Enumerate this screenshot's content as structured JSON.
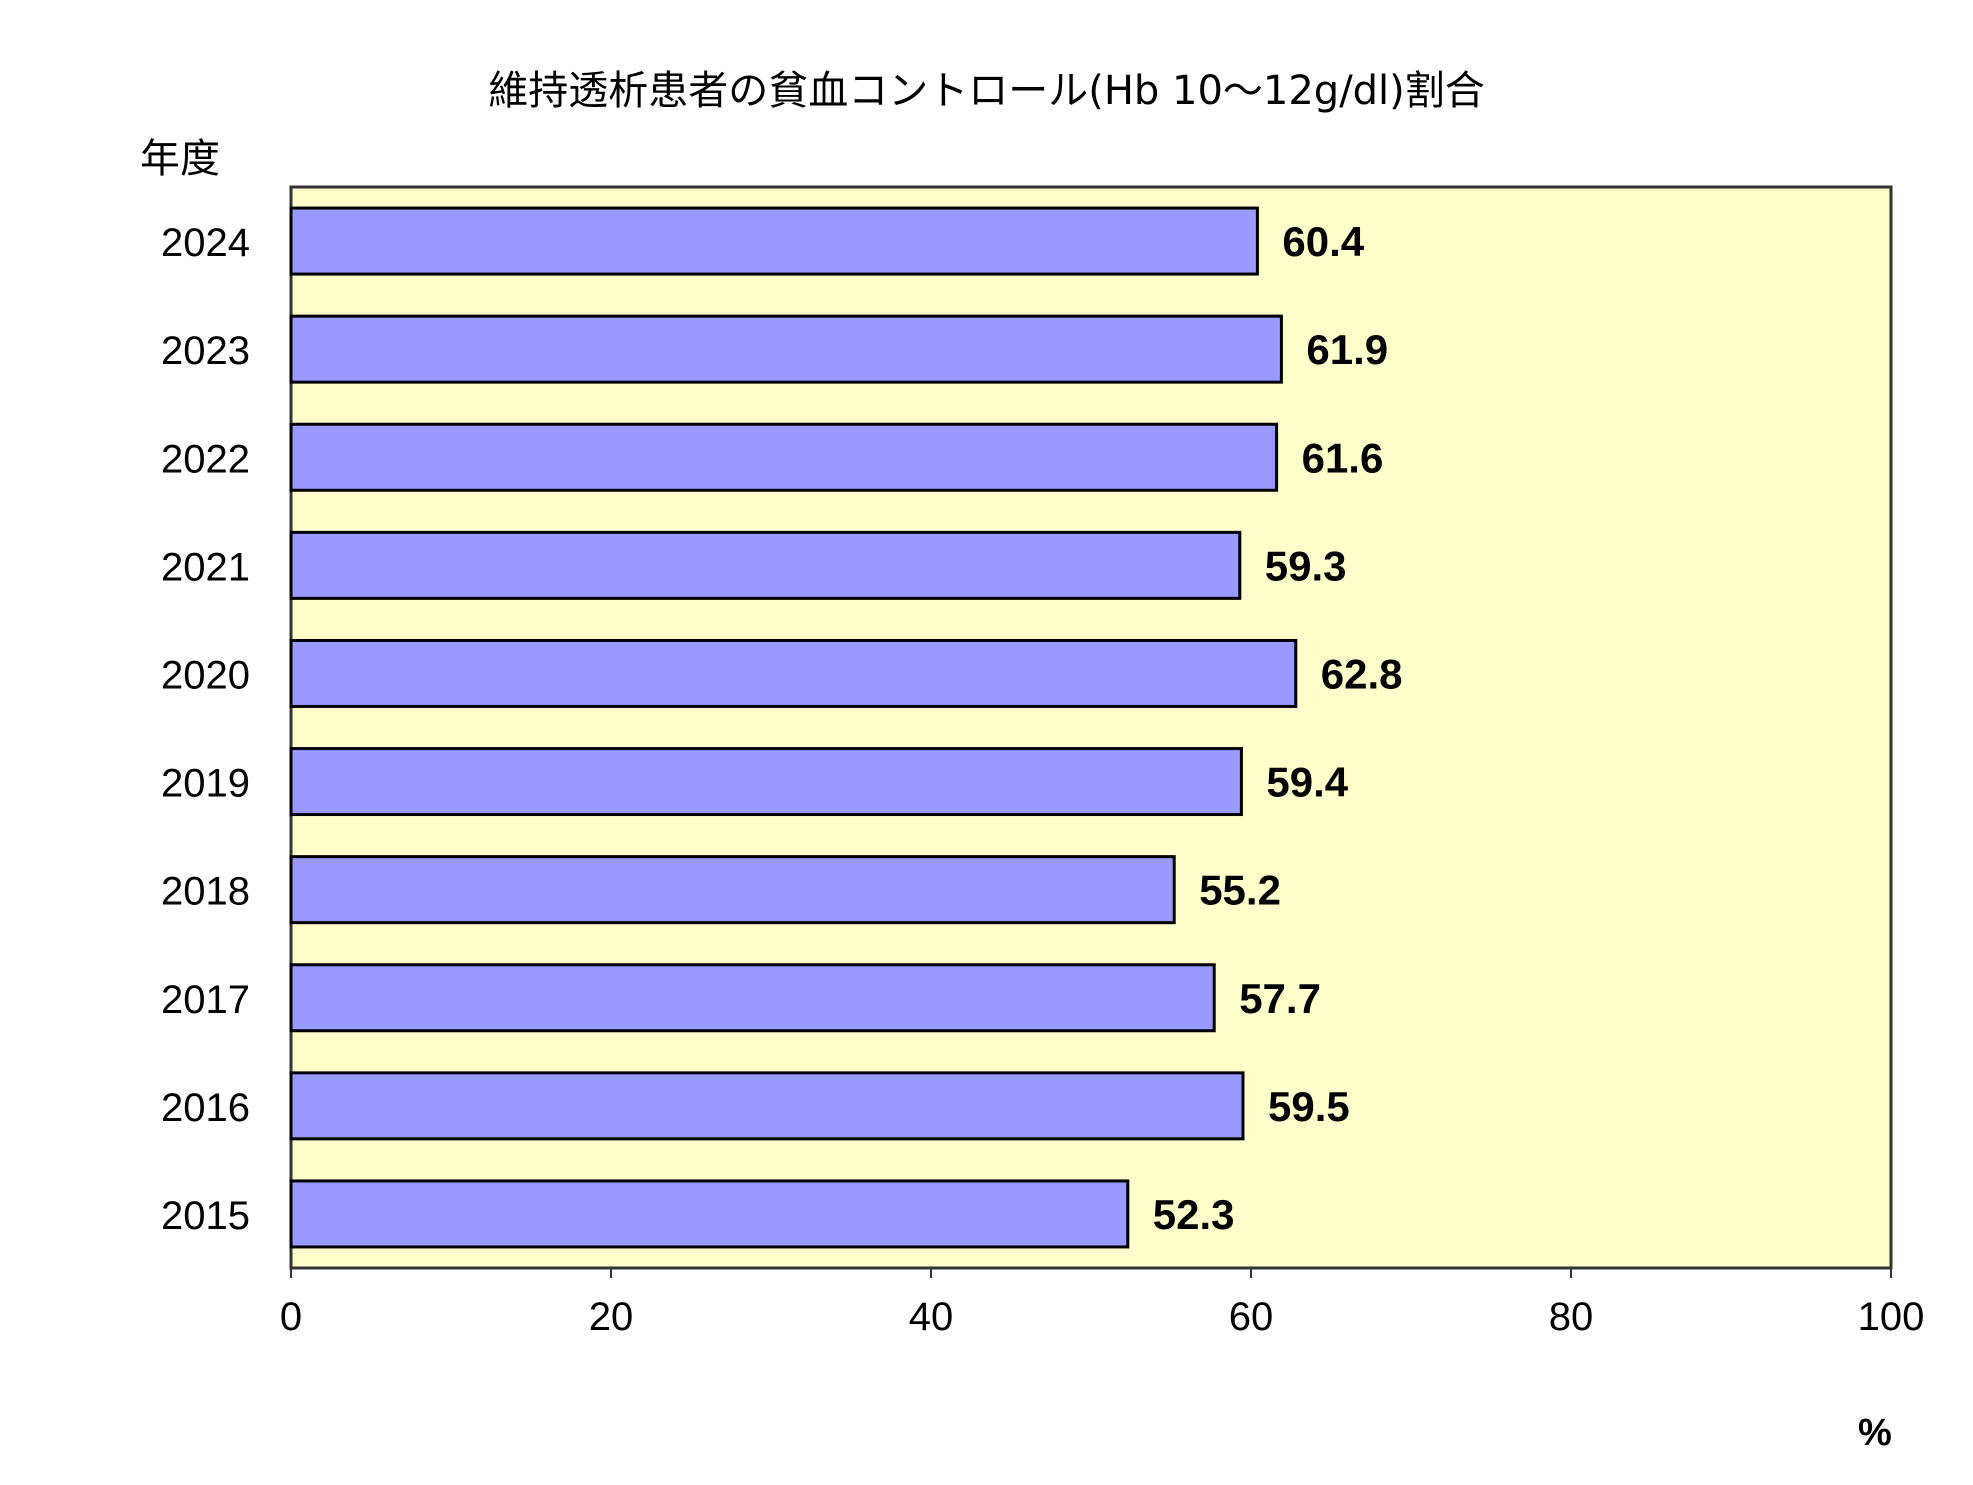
{
  "chart_data": {
    "type": "bar",
    "orientation": "horizontal",
    "title": "維持透析患者の貧血コントロール(Hb 10～12g/dl)割合",
    "ylabel": "年度",
    "xlabel": "%",
    "categories": [
      "2024",
      "2023",
      "2022",
      "2021",
      "2020",
      "2019",
      "2018",
      "2017",
      "2016",
      "2015"
    ],
    "values": [
      60.4,
      61.9,
      61.6,
      59.3,
      62.8,
      59.4,
      55.2,
      57.7,
      59.5,
      52.3
    ],
    "value_labels": [
      "60.4",
      "61.9",
      "61.6",
      "59.3",
      "62.8",
      "59.4",
      "55.2",
      "57.7",
      "59.5",
      "52.3"
    ],
    "xlim": [
      0,
      100
    ],
    "xticks": [
      "0",
      "20",
      "40",
      "60",
      "80",
      "100"
    ],
    "grid": false,
    "colors": {
      "bar": "#9999ff",
      "plot_background": "#ffffcc",
      "bar_edge": "#000000"
    }
  }
}
